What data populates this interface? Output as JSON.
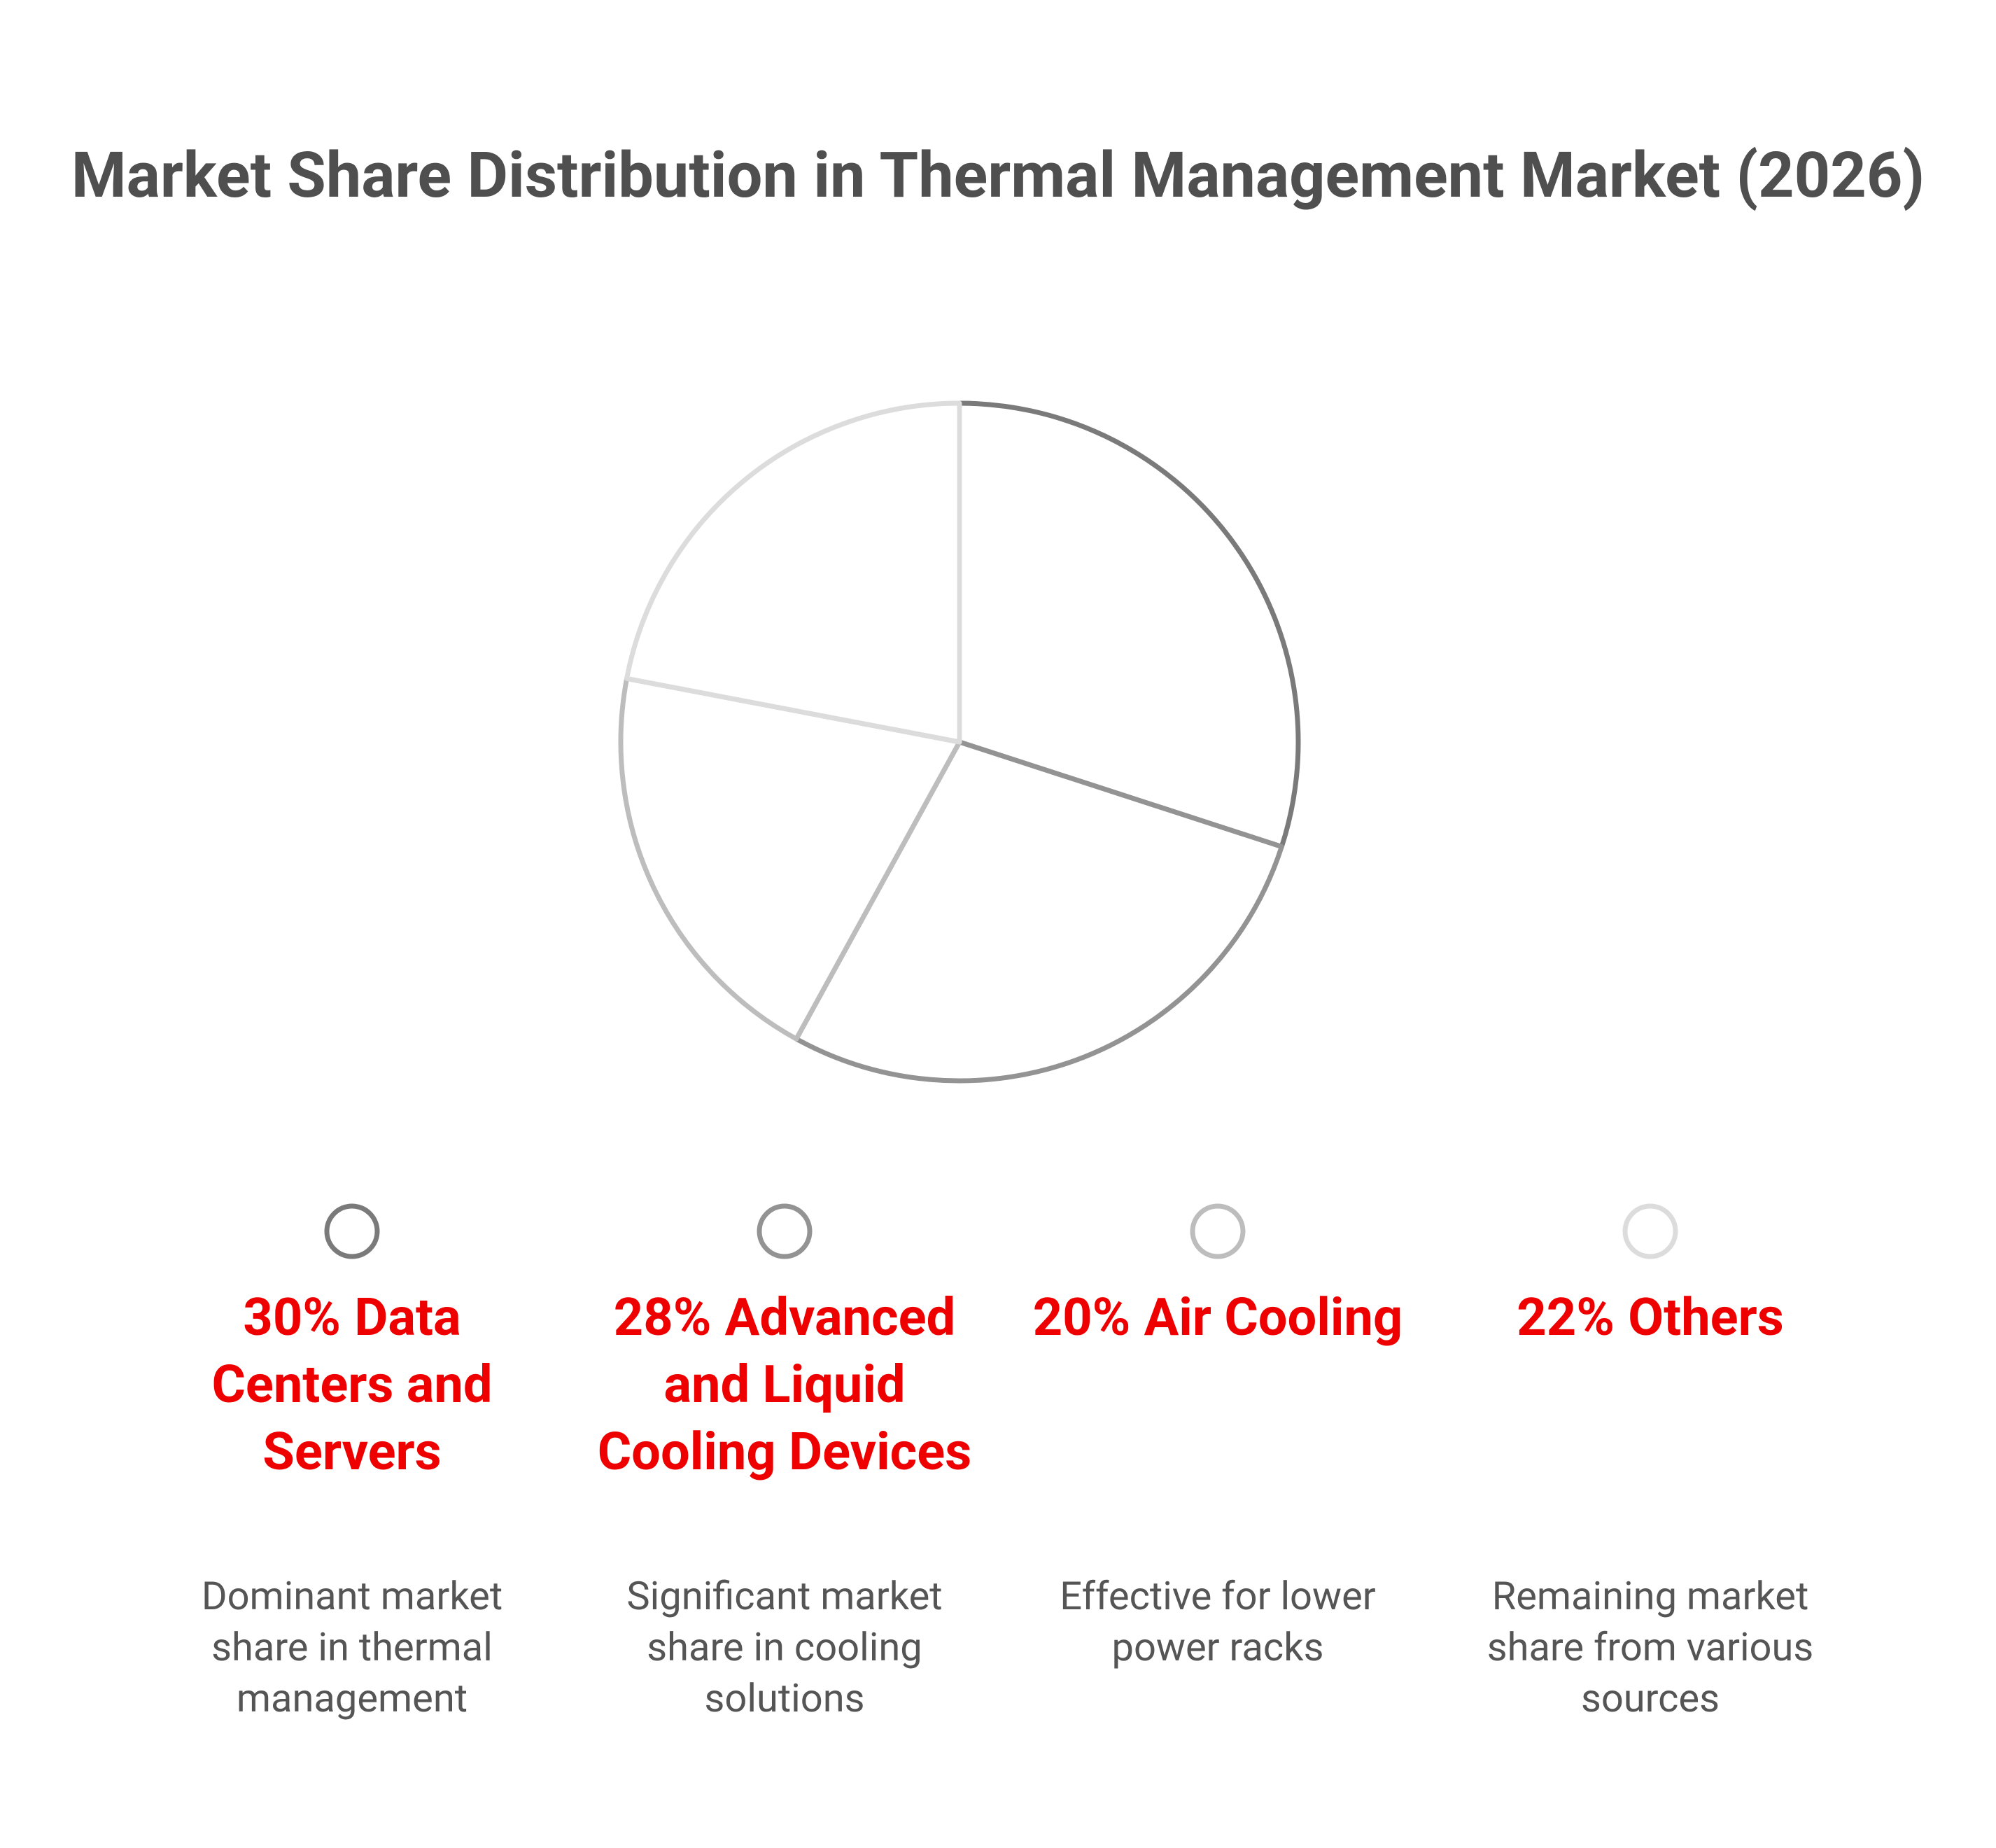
{
  "chart_data": {
    "type": "pie",
    "title": "Market Share Distribution in Thermal Management Market (2026)",
    "categories": [
      "Data Centers and Servers",
      "Advanced and Liquid Cooling Devices",
      "Air Cooling",
      "Others"
    ],
    "values": [
      30,
      28,
      20,
      22
    ],
    "value_labels": [
      "30%",
      "28%",
      "20%",
      "22%"
    ],
    "colors": [
      "#7a7a7a",
      "#939393",
      "#bdbdbd",
      "#dcdcdc"
    ],
    "descriptions": [
      "Dominant market share in thermal management",
      "Significant market share in cooling solutions",
      "Effective for lower power racks",
      "Remaining market share from various sources"
    ]
  }
}
